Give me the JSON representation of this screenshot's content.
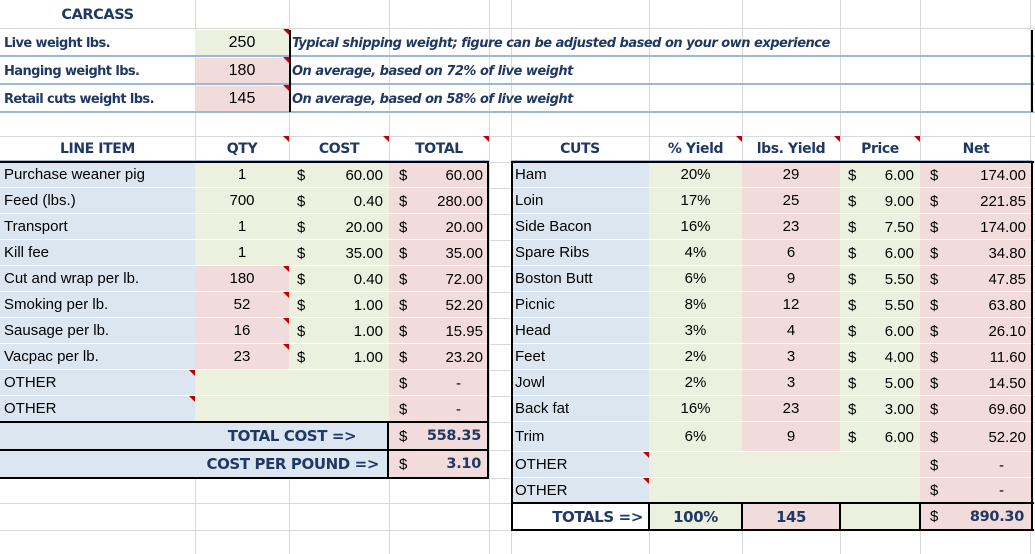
{
  "carcass": {
    "title": "CARCASS",
    "rows": [
      {
        "label": "Live weight lbs.",
        "value": "250",
        "note": "Typical shipping weight; figure can be adjusted based on your own experience"
      },
      {
        "label": "Hanging weight lbs.",
        "value": "180",
        "note": "On average, based on 72% of live weight"
      },
      {
        "label": "Retail cuts weight lbs.",
        "value": "145",
        "note": "On average, based on 58% of live weight"
      }
    ]
  },
  "costs": {
    "headers": {
      "item": "LINE ITEM",
      "qty": "QTY",
      "cost": "COST",
      "total": "TOTAL"
    },
    "currency": "$",
    "rows": [
      {
        "item": "Purchase weaner pig",
        "qty": "1",
        "cost": "60.00",
        "total": "60.00"
      },
      {
        "item": "Feed (lbs.)",
        "qty": "700",
        "cost": "0.40",
        "total": "280.00"
      },
      {
        "item": "Transport",
        "qty": "1",
        "cost": "20.00",
        "total": "20.00"
      },
      {
        "item": "Kill fee",
        "qty": "1",
        "cost": "35.00",
        "total": "35.00"
      },
      {
        "item": "Cut and wrap per lb.",
        "qty": "180",
        "cost": "0.40",
        "total": "72.00"
      },
      {
        "item": "Smoking per lb.",
        "qty": "52",
        "cost": "1.00",
        "total": "52.20"
      },
      {
        "item": "Sausage per lb.",
        "qty": "16",
        "cost": "1.00",
        "total": "15.95"
      },
      {
        "item": "Vacpac per lb.",
        "qty": "23",
        "cost": "1.00",
        "total": "23.20"
      },
      {
        "item": "OTHER",
        "qty": "",
        "cost": "",
        "total": "-"
      },
      {
        "item": "OTHER",
        "qty": "",
        "cost": "",
        "total": "-"
      }
    ],
    "total_cost_label": "TOTAL COST =>",
    "total_cost": "558.35",
    "cost_per_pound_label": "COST PER POUND =>",
    "cost_per_pound": "3.10"
  },
  "cuts": {
    "headers": {
      "cut": "CUTS",
      "pct": "% Yield",
      "lbs": "lbs. Yield",
      "price": "Price",
      "net": "Net"
    },
    "currency": "$",
    "rows": [
      {
        "cut": "Ham",
        "pct": "20%",
        "lbs": "29",
        "price": "6.00",
        "net": "174.00"
      },
      {
        "cut": "Loin",
        "pct": "17%",
        "lbs": "25",
        "price": "9.00",
        "net": "221.85"
      },
      {
        "cut": "Side Bacon",
        "pct": "16%",
        "lbs": "23",
        "price": "7.50",
        "net": "174.00"
      },
      {
        "cut": "Spare Ribs",
        "pct": "4%",
        "lbs": "6",
        "price": "6.00",
        "net": "34.80"
      },
      {
        "cut": "Boston Butt",
        "pct": "6%",
        "lbs": "9",
        "price": "5.50",
        "net": "47.85"
      },
      {
        "cut": "Picnic",
        "pct": "8%",
        "lbs": "12",
        "price": "5.50",
        "net": "63.80"
      },
      {
        "cut": "Head",
        "pct": "3%",
        "lbs": "4",
        "price": "6.00",
        "net": "26.10"
      },
      {
        "cut": "Feet",
        "pct": "2%",
        "lbs": "3",
        "price": "4.00",
        "net": "11.60"
      },
      {
        "cut": "Jowl",
        "pct": "2%",
        "lbs": "3",
        "price": "5.00",
        "net": "14.50"
      },
      {
        "cut": "Back fat",
        "pct": "16%",
        "lbs": "23",
        "price": "3.00",
        "net": "69.60"
      },
      {
        "cut": "Trim",
        "pct": "6%",
        "lbs": "9",
        "price": "6.00",
        "net": "52.20"
      },
      {
        "cut": "OTHER",
        "pct": "",
        "lbs": "",
        "price": "",
        "net": "-"
      },
      {
        "cut": "OTHER",
        "pct": "",
        "lbs": "",
        "price": "",
        "net": "-"
      }
    ],
    "totals_label": "TOTALS =>",
    "total_pct": "100%",
    "total_lbs": "145",
    "total_net": "890.30"
  },
  "colors": {
    "blue_fill": "#dce6f1",
    "green_fill": "#ebf1de",
    "pink_fill": "#f2dcdb",
    "header_text": "#1f3864",
    "comment_marker": "#c00000"
  }
}
